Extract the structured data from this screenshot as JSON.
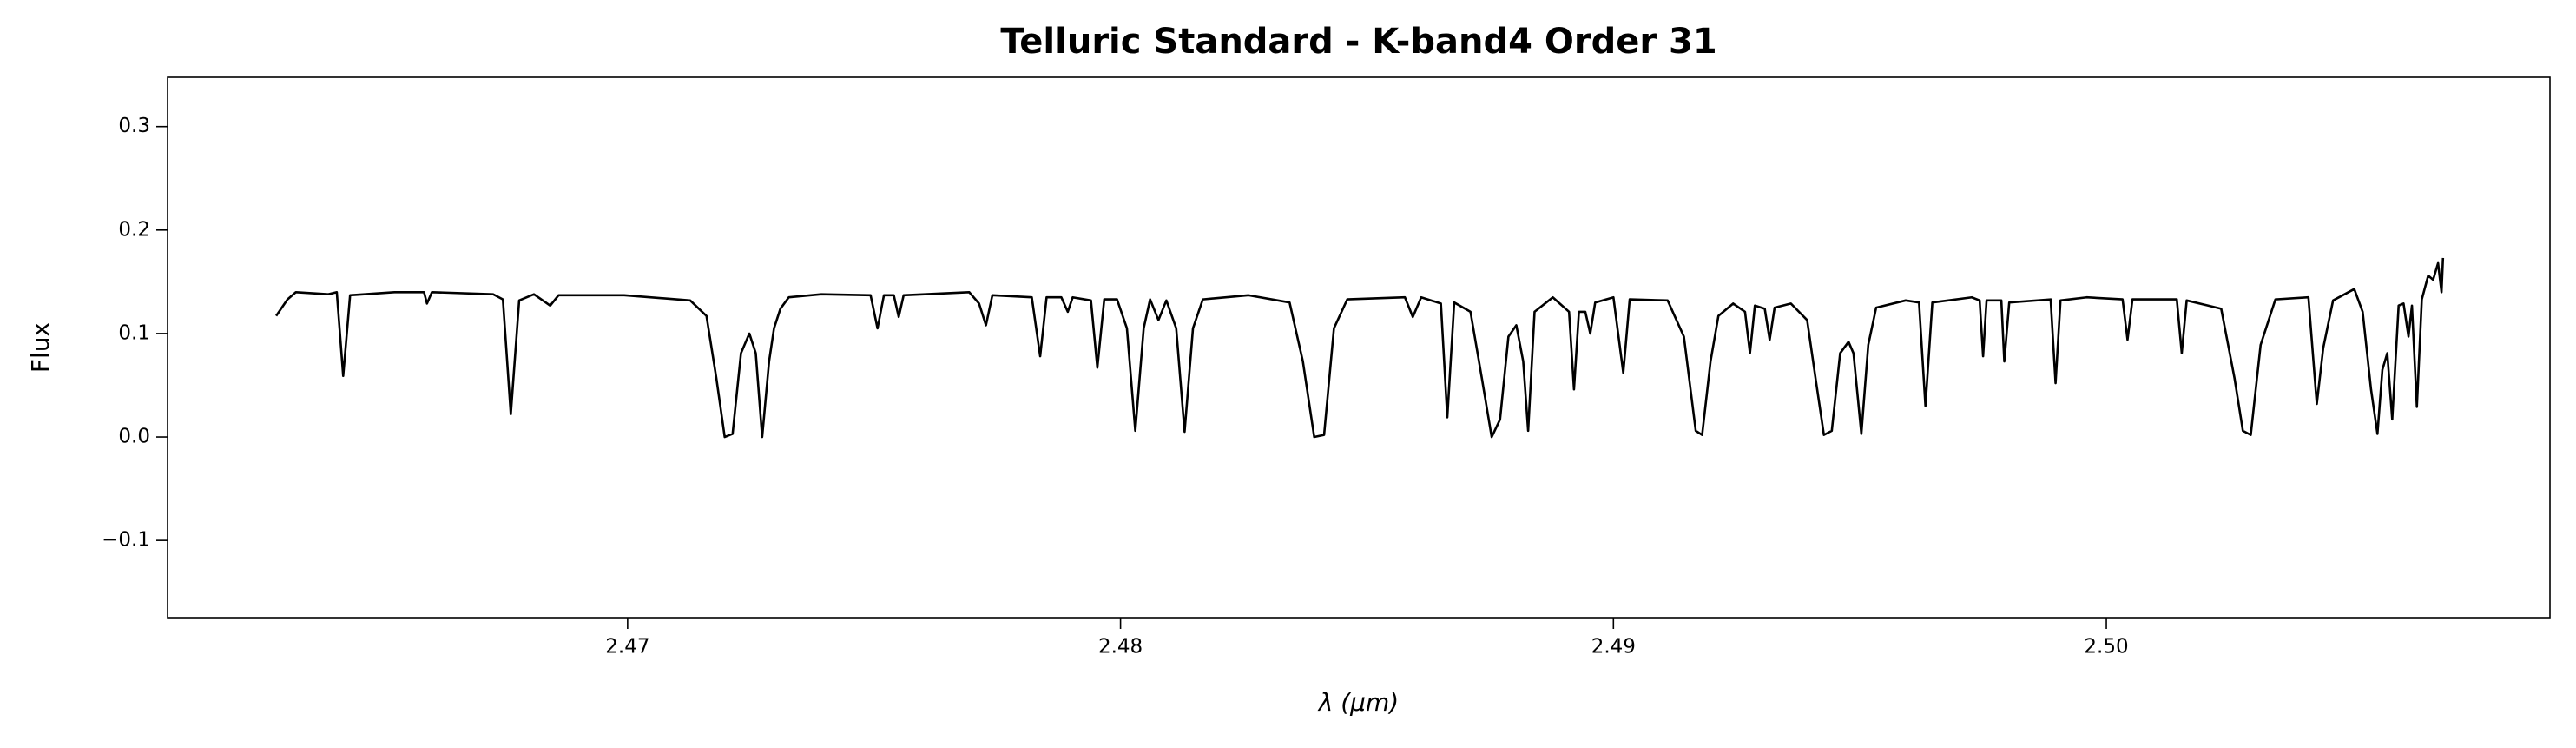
{
  "chart_data": {
    "type": "line",
    "title": "Telluric Standard - K-band4 Order 31",
    "x_label": "λ (μm)",
    "y_label": "Flux",
    "xlim": [
      2.460667,
      2.509
    ],
    "ylim": [
      -0.1746,
      0.3476
    ],
    "xticks": [
      2.47,
      2.48,
      2.49,
      {
        "value": 2.5,
        "label": "2.50"
      }
    ],
    "yticks": [
      {
        "value": -0.1,
        "label": "−0.1"
      },
      {
        "value": 0,
        "label": "0.0"
      },
      0.1,
      0.2,
      0.3
    ],
    "grid": false,
    "series": [
      {
        "name": null,
        "color": "#000000",
        "x": [
          2.46287,
          2.4631,
          2.46327,
          2.46393,
          2.4641,
          2.46423,
          2.46437,
          2.46527,
          2.46587,
          2.46593,
          2.46603,
          2.46727,
          2.46747,
          2.46763,
          2.4678,
          2.4681,
          2.46843,
          2.4686,
          2.46993,
          2.47127,
          2.4716,
          2.4718,
          2.47197,
          2.47213,
          2.4723,
          2.47247,
          2.4726,
          2.47273,
          2.47287,
          2.47297,
          2.4731,
          2.47327,
          2.47393,
          2.47493,
          2.47507,
          2.4752,
          2.4754,
          2.4755,
          2.4756,
          2.47693,
          2.47713,
          2.47727,
          2.4774,
          2.4782,
          2.47837,
          2.4785,
          2.4788,
          2.47893,
          2.47903,
          2.4794,
          2.47953,
          2.47967,
          2.47993,
          2.48013,
          2.4803,
          2.48047,
          2.4806,
          2.48077,
          2.48093,
          2.48113,
          2.4813,
          2.48147,
          2.48167,
          2.4826,
          2.48343,
          2.4837,
          2.48393,
          2.48413,
          2.48433,
          2.4846,
          2.48577,
          2.48593,
          2.4861,
          2.4865,
          2.48663,
          2.48677,
          2.4871,
          2.48733,
          2.48753,
          2.4877,
          2.48787,
          2.48803,
          2.48817,
          2.48827,
          2.4884,
          2.48877,
          2.4891,
          2.4892,
          2.4893,
          2.48943,
          2.48953,
          2.48963,
          2.49,
          2.4902,
          2.49033,
          2.4911,
          2.49143,
          2.49167,
          2.4918,
          2.49197,
          2.49213,
          2.49243,
          2.49267,
          2.49277,
          2.49287,
          2.49307,
          2.49317,
          2.49327,
          2.4936,
          2.49393,
          2.4941,
          2.49427,
          2.49443,
          2.4946,
          2.49477,
          2.49487,
          2.49503,
          2.49517,
          2.49533,
          2.49593,
          2.4962,
          2.49633,
          2.49647,
          2.49727,
          2.49743,
          2.4975,
          2.49757,
          2.49787,
          2.49793,
          2.49803,
          2.49887,
          2.49897,
          2.49907,
          2.4996,
          2.50033,
          2.50043,
          2.50053,
          2.50143,
          2.50153,
          2.50163,
          2.50233,
          2.5026,
          2.50277,
          2.50293,
          2.50313,
          2.50343,
          2.5041,
          2.50427,
          2.5044,
          2.5046,
          2.50503,
          2.5052,
          2.50537,
          2.5055,
          2.5056,
          2.5057,
          2.5058,
          2.50593,
          2.50603,
          2.50613,
          2.5062,
          2.5063,
          2.5064,
          2.50653,
          2.50663,
          2.50673,
          2.5068,
          2.50683
        ],
        "values": [
          0.117,
          0.133,
          0.14,
          0.138,
          0.14,
          0.059,
          0.137,
          0.14,
          0.14,
          0.129,
          0.14,
          0.138,
          0.133,
          0.022,
          0.132,
          0.138,
          0.127,
          0.137,
          0.137,
          0.132,
          0.117,
          0.057,
          0,
          0.003,
          0.081,
          0.1,
          0.081,
          0,
          0.073,
          0.105,
          0.124,
          0.135,
          0.138,
          0.137,
          0.105,
          0.137,
          0.137,
          0.116,
          0.137,
          0.14,
          0.129,
          0.108,
          0.137,
          0.135,
          0.078,
          0.135,
          0.135,
          0.121,
          0.135,
          0.132,
          0.067,
          0.133,
          0.133,
          0.105,
          0.006,
          0.105,
          0.133,
          0.113,
          0.132,
          0.105,
          0.005,
          0.105,
          0.133,
          0.137,
          0.13,
          0.073,
          0,
          0.002,
          0.105,
          0.133,
          0.135,
          0.116,
          0.135,
          0.129,
          0.019,
          0.13,
          0.121,
          0.057,
          0,
          0.017,
          0.097,
          0.108,
          0.073,
          0.006,
          0.121,
          0.135,
          0.121,
          0.046,
          0.121,
          0.121,
          0.1,
          0.13,
          0.135,
          0.062,
          0.133,
          0.132,
          0.097,
          0.006,
          0.002,
          0.073,
          0.117,
          0.129,
          0.121,
          0.081,
          0.127,
          0.124,
          0.094,
          0.125,
          0.129,
          0.113,
          0.057,
          0.002,
          0.006,
          0.081,
          0.092,
          0.081,
          0.003,
          0.089,
          0.125,
          0.132,
          0.13,
          0.03,
          0.13,
          0.135,
          0.132,
          0.078,
          0.132,
          0.132,
          0.073,
          0.13,
          0.133,
          0.052,
          0.132,
          0.135,
          0.133,
          0.094,
          0.133,
          0.133,
          0.081,
          0.132,
          0.124,
          0.057,
          0.006,
          0.002,
          0.089,
          0.133,
          0.135,
          0.032,
          0.086,
          0.132,
          0.143,
          0.121,
          0.046,
          0.003,
          0.065,
          0.081,
          0.017,
          0.127,
          0.129,
          0.097,
          0.127,
          0.029,
          0.133,
          0.156,
          0.152,
          0.168,
          0.14,
          0.173
        ]
      }
    ]
  }
}
